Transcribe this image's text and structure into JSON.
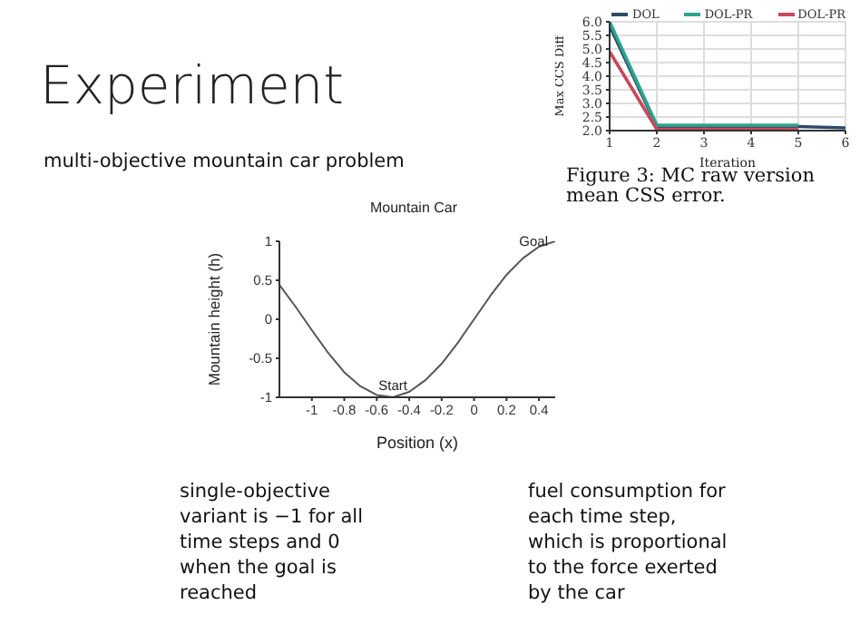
{
  "chart_data": [
    {
      "type": "other",
      "title": "Experiment",
      "subtitle": "multi-objective mountain car problem",
      "annotations": [
        "single-objective variant is −1 for all time steps and 0 when the goal is reached",
        "fuel consumption for each time step, which is proportional to the force exerted by the car"
      ]
    },
    {
      "type": "line",
      "xlabel": "Iteration",
      "ylabel": "Max CCS Diff",
      "xlim": [
        1,
        6
      ],
      "xticks": [
        1,
        2,
        3,
        4,
        5,
        6
      ],
      "ylim": [
        2,
        6
      ],
      "yticks": [
        {
          "value": 2,
          "label": "2.0"
        },
        {
          "value": 2.5,
          "label": "2.5"
        },
        {
          "value": 3,
          "label": "3.0"
        },
        {
          "value": 3.5,
          "label": "3.5"
        },
        {
          "value": 4,
          "label": "4.0"
        },
        {
          "value": 4.5,
          "label": "4.5"
        },
        {
          "value": 5,
          "label": "5.0"
        },
        {
          "value": 5.5,
          "label": "5.5"
        },
        {
          "value": 6,
          "label": "6.0"
        }
      ],
      "grid": true,
      "legend": "top",
      "marker": "none",
      "line_style": "solid",
      "annotations": [
        "Figure 3: MC raw version mean CSS error."
      ],
      "series": [
        {
          "name": "DOL",
          "color": "#2f4a6b",
          "x": [
            1,
            2,
            3,
            4,
            5,
            6
          ],
          "values": [
            5.85,
            2.15,
            2.15,
            2.15,
            2.15,
            2.1
          ]
        },
        {
          "name": "DOL-PR",
          "color": "#2ca58d",
          "x": [
            1,
            2,
            3,
            4,
            5
          ],
          "values": [
            6.0,
            2.2,
            2.2,
            2.2,
            2.2
          ]
        },
        {
          "name": "DOL-PR",
          "color": "#c9485b",
          "x": [
            1,
            2,
            3,
            4,
            5
          ],
          "values": [
            4.9,
            2.05,
            2.05,
            2.05,
            2.05
          ]
        }
      ]
    },
    {
      "type": "line",
      "title": "Mountain Car",
      "xlabel": "Position (x)",
      "ylabel": "Mountain height (h)",
      "xlim": [
        -1.2,
        0.5
      ],
      "xticks": [
        -1,
        -0.8,
        -0.6,
        -0.4,
        -0.2,
        0,
        0.2,
        0.4
      ],
      "ylim": [
        -1,
        1
      ],
      "yticks": [
        -1,
        -0.5,
        0,
        0.5,
        1
      ],
      "grid": false,
      "marker": "none",
      "line_style": "solid",
      "annotations": [
        {
          "text": "Start",
          "x": -0.5,
          "y": -1
        },
        {
          "text": "Goal",
          "x": 0.5,
          "y": 1
        }
      ],
      "series": [
        {
          "color": "#555555",
          "x": [
            -1.2,
            -1.1,
            -1.0,
            -0.9,
            -0.8,
            -0.7,
            -0.6,
            -0.5,
            -0.4,
            -0.3,
            -0.2,
            -0.1,
            0,
            0.1,
            0.2,
            0.3,
            0.4,
            0.5
          ],
          "values": [
            0.44,
            0.16,
            -0.14,
            -0.43,
            -0.68,
            -0.86,
            -0.97,
            -1.0,
            -0.93,
            -0.78,
            -0.57,
            -0.3,
            0,
            0.3,
            0.57,
            0.78,
            0.93,
            1.0
          ]
        }
      ]
    }
  ]
}
